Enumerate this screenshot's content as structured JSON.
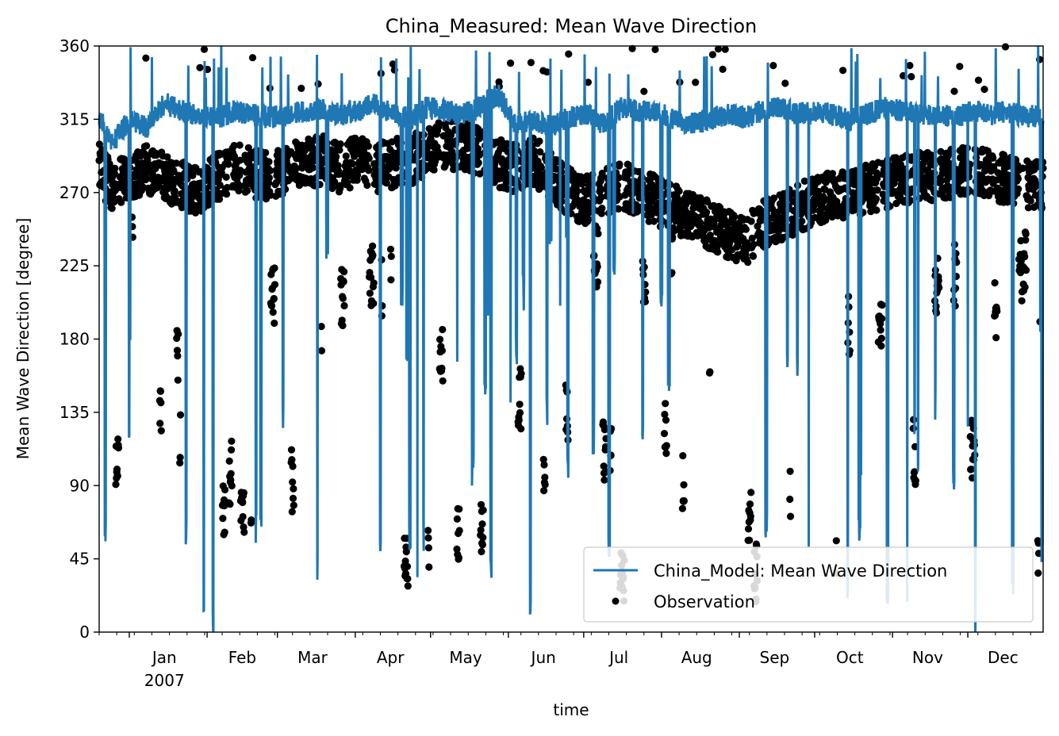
{
  "chart_data": {
    "type": "line",
    "title": "China_Measured: Mean Wave Direction",
    "xlabel": "time",
    "ylabel": "Mean Wave Direction [degree]",
    "ylim": [
      0,
      360
    ],
    "xlim": [
      "2006-12-20",
      "2007-12-31"
    ],
    "y_ticks": [
      "0",
      "45",
      "90",
      "135",
      "180",
      "225",
      "270",
      "315",
      "360"
    ],
    "x_ticks": [
      {
        "date": "2007-01-01",
        "label": "Jan",
        "sublabel": "2007"
      },
      {
        "date": "2007-02-01",
        "label": "Feb"
      },
      {
        "date": "2007-03-01",
        "label": "Mar"
      },
      {
        "date": "2007-04-01",
        "label": "Apr"
      },
      {
        "date": "2007-05-01",
        "label": "May"
      },
      {
        "date": "2007-06-01",
        "label": "Jun"
      },
      {
        "date": "2007-07-01",
        "label": "Jul"
      },
      {
        "date": "2007-08-01",
        "label": "Aug"
      },
      {
        "date": "2007-09-01",
        "label": "Sep"
      },
      {
        "date": "2007-10-01",
        "label": "Oct"
      },
      {
        "date": "2007-11-01",
        "label": "Nov"
      },
      {
        "date": "2007-12-01",
        "label": "Dec"
      }
    ],
    "legend_position": "lower-right",
    "series": [
      {
        "name": "China_Model: Mean Wave Direction",
        "kind": "line",
        "color": "#1f77b4",
        "dates": [
          "2006-12-20",
          "2006-12-25",
          "2007-01-01",
          "2007-01-08",
          "2007-01-15",
          "2007-01-22",
          "2007-01-29",
          "2007-02-05",
          "2007-02-12",
          "2007-02-19",
          "2007-02-26",
          "2007-03-05",
          "2007-03-12",
          "2007-03-19",
          "2007-03-26",
          "2007-04-02",
          "2007-04-09",
          "2007-04-16",
          "2007-04-23",
          "2007-04-30",
          "2007-05-07",
          "2007-05-14",
          "2007-05-21",
          "2007-05-28",
          "2007-06-04",
          "2007-06-11",
          "2007-06-18",
          "2007-06-25",
          "2007-07-02",
          "2007-07-09",
          "2007-07-16",
          "2007-07-23",
          "2007-07-30",
          "2007-08-06",
          "2007-08-13",
          "2007-08-20",
          "2007-08-27",
          "2007-09-03",
          "2007-09-10",
          "2007-09-17",
          "2007-09-24",
          "2007-10-01",
          "2007-10-08",
          "2007-10-15",
          "2007-10-22",
          "2007-10-29",
          "2007-11-05",
          "2007-11-12",
          "2007-11-19",
          "2007-11-26",
          "2007-12-03",
          "2007-12-10",
          "2007-12-17",
          "2007-12-24",
          "2007-12-31"
        ],
        "values": [
          318,
          300,
          315,
          310,
          325,
          320,
          318,
          316,
          320,
          318,
          316,
          318,
          320,
          322,
          318,
          320,
          325,
          318,
          316,
          322,
          320,
          318,
          324,
          330,
          312,
          315,
          310,
          316,
          318,
          312,
          322,
          320,
          320,
          315,
          312,
          315,
          318,
          316,
          320,
          322,
          318,
          320,
          318,
          315,
          318,
          322,
          320,
          318,
          318,
          316,
          320,
          318,
          320,
          316,
          318
        ]
      },
      {
        "name": "Observation",
        "kind": "scatter",
        "color": "#000000",
        "dates": [
          "2006-12-20",
          "2006-12-25",
          "2007-01-01",
          "2007-01-08",
          "2007-01-15",
          "2007-01-22",
          "2007-01-29",
          "2007-02-05",
          "2007-02-12",
          "2007-02-19",
          "2007-02-26",
          "2007-03-05",
          "2007-03-12",
          "2007-03-19",
          "2007-03-26",
          "2007-04-02",
          "2007-04-09",
          "2007-04-16",
          "2007-04-23",
          "2007-04-30",
          "2007-05-07",
          "2007-05-14",
          "2007-05-21",
          "2007-05-28",
          "2007-06-04",
          "2007-06-11",
          "2007-06-18",
          "2007-06-25",
          "2007-07-02",
          "2007-07-09",
          "2007-07-16",
          "2007-07-23",
          "2007-07-30",
          "2007-08-06",
          "2007-08-13",
          "2007-08-20",
          "2007-08-27",
          "2007-09-03",
          "2007-09-10",
          "2007-09-17",
          "2007-09-24",
          "2007-10-01",
          "2007-10-08",
          "2007-10-15",
          "2007-10-22",
          "2007-10-29",
          "2007-11-05",
          "2007-11-12",
          "2007-11-19",
          "2007-11-26",
          "2007-12-03",
          "2007-12-10",
          "2007-12-17",
          "2007-12-24",
          "2007-12-31"
        ],
        "values": [
          285,
          275,
          280,
          285,
          280,
          275,
          270,
          280,
          285,
          282,
          280,
          285,
          288,
          290,
          285,
          290,
          285,
          288,
          290,
          295,
          300,
          298,
          295,
          288,
          285,
          290,
          280,
          270,
          265,
          270,
          275,
          270,
          265,
          260,
          255,
          250,
          245,
          240,
          250,
          255,
          260,
          265,
          268,
          270,
          272,
          275,
          278,
          280,
          280,
          282,
          285,
          280,
          278,
          275,
          275
        ]
      }
    ]
  }
}
